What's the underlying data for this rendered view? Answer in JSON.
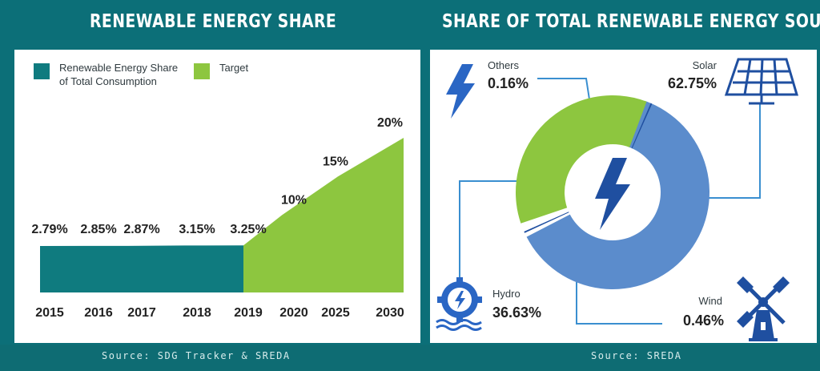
{
  "left_title": "RENEWABLE ENERGY SHARE",
  "right_title": "SHARE OF TOTAL RENEWABLE ENERGY SOURCES",
  "left_source": "Source: SDG Tracker & SREDA",
  "right_source": "Source: SREDA",
  "legend": {
    "actual": "Renewable Energy Share of Total Consumption",
    "actual_line1": "Renewable Energy Share",
    "actual_line2": "of Total Consumption",
    "target": "Target"
  },
  "colors": {
    "background": "#0c6f78",
    "actual": "#0f7b7f",
    "target": "#8dc63f",
    "solar": "#5b8ccc",
    "dark_blue": "#1f4fa0",
    "icon_blue": "#2a66c4",
    "line": "#3a8fd0"
  },
  "chart_data": [
    {
      "type": "area",
      "title": "RENEWABLE ENERGY SHARE",
      "categories": [
        "2015",
        "2016",
        "2017",
        "2018",
        "2019",
        "2020",
        "2025",
        "2030"
      ],
      "series": [
        {
          "name": "Renewable Energy Share of Total Consumption",
          "values": [
            2.79,
            2.85,
            2.87,
            3.15,
            3.25,
            null,
            null,
            null
          ]
        },
        {
          "name": "Target",
          "values": [
            null,
            null,
            null,
            null,
            3.25,
            10,
            15,
            20
          ]
        }
      ],
      "value_labels": [
        "2.79%",
        "2.85%",
        "2.87%",
        "3.15%",
        "3.25%",
        "10%",
        "15%",
        "20%"
      ],
      "legend_position": "top-left",
      "grid": false
    },
    {
      "type": "pie",
      "title": "SHARE OF TOTAL RENEWABLE ENERGY SOURCES",
      "variant": "donut",
      "slices": [
        {
          "name": "Solar",
          "value": 62.75,
          "label": "62.75%",
          "color": "#5b8ccc"
        },
        {
          "name": "Wind",
          "value": 0.46,
          "label": "0.46%",
          "color": "#1f4fa0"
        },
        {
          "name": "Hydro",
          "value": 36.63,
          "label": "36.63%",
          "color": "#8dc63f"
        },
        {
          "name": "Others",
          "value": 0.16,
          "label": "0.16%",
          "color": "#1f4fa0"
        }
      ]
    }
  ],
  "icons": [
    "lightning-icon",
    "solar-panel-icon",
    "windmill-icon",
    "hydro-turbine-icon",
    "center-lightning-icon"
  ]
}
